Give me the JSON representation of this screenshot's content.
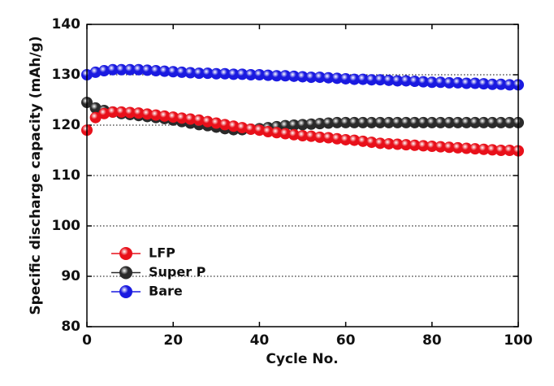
{
  "chart_data": {
    "type": "scatter",
    "xlabel": "Cycle No.",
    "ylabel": "Specific discharge capacity (mAh/g)",
    "xlim": [
      0,
      100
    ],
    "ylim": [
      80,
      140
    ],
    "xticks": [
      0,
      20,
      40,
      60,
      80,
      100
    ],
    "yticks": [
      80,
      90,
      100,
      110,
      120,
      130,
      140
    ],
    "grid": true,
    "legend": "lower left",
    "x": [
      0,
      2,
      4,
      6,
      8,
      10,
      12,
      14,
      16,
      18,
      20,
      22,
      24,
      26,
      28,
      30,
      32,
      34,
      36,
      38,
      40,
      42,
      44,
      46,
      48,
      50,
      52,
      54,
      56,
      58,
      60,
      62,
      64,
      66,
      68,
      70,
      72,
      74,
      76,
      78,
      80,
      82,
      84,
      86,
      88,
      90,
      92,
      94,
      96,
      98,
      100
    ],
    "series": [
      {
        "name": "LFP",
        "color": "#e8101a",
        "values": [
          119,
          121.5,
          122.3,
          122.6,
          122.6,
          122.5,
          122.4,
          122.2,
          122,
          121.8,
          121.6,
          121.4,
          121.2,
          121,
          120.7,
          120.4,
          120.1,
          119.8,
          119.5,
          119.2,
          119,
          118.7,
          118.5,
          118.3,
          118.1,
          117.9,
          117.8,
          117.6,
          117.5,
          117.3,
          117.1,
          117,
          116.8,
          116.6,
          116.4,
          116.3,
          116.2,
          116.1,
          116,
          115.9,
          115.8,
          115.7,
          115.6,
          115.5,
          115.4,
          115.3,
          115.2,
          115.1,
          115,
          115,
          114.9
        ]
      },
      {
        "name": "Super P",
        "color": "#2a2a2a",
        "values": [
          124.5,
          123.4,
          122.9,
          122.6,
          122.3,
          122.1,
          121.9,
          121.7,
          121.5,
          121.3,
          121,
          120.7,
          120.4,
          120.1,
          119.9,
          119.6,
          119.3,
          119.1,
          119.1,
          119.2,
          119.3,
          119.5,
          119.7,
          119.9,
          120,
          120.1,
          120.2,
          120.3,
          120.4,
          120.5,
          120.5,
          120.5,
          120.5,
          120.5,
          120.5,
          120.5,
          120.5,
          120.5,
          120.5,
          120.5,
          120.5,
          120.5,
          120.5,
          120.5,
          120.5,
          120.5,
          120.5,
          120.5,
          120.5,
          120.5,
          120.5
        ]
      },
      {
        "name": "Bare",
        "color": "#1a1ae0",
        "values": [
          130,
          130.5,
          130.8,
          131,
          131,
          131,
          131,
          130.9,
          130.8,
          130.7,
          130.6,
          130.5,
          130.4,
          130.3,
          130.3,
          130.2,
          130.2,
          130.1,
          130.1,
          130,
          130,
          129.9,
          129.8,
          129.8,
          129.7,
          129.6,
          129.5,
          129.5,
          129.4,
          129.3,
          129.2,
          129.1,
          129.1,
          129,
          129,
          128.9,
          128.8,
          128.8,
          128.7,
          128.6,
          128.5,
          128.5,
          128.4,
          128.4,
          128.3,
          128.3,
          128.2,
          128.1,
          128.1,
          128,
          128
        ]
      }
    ]
  }
}
